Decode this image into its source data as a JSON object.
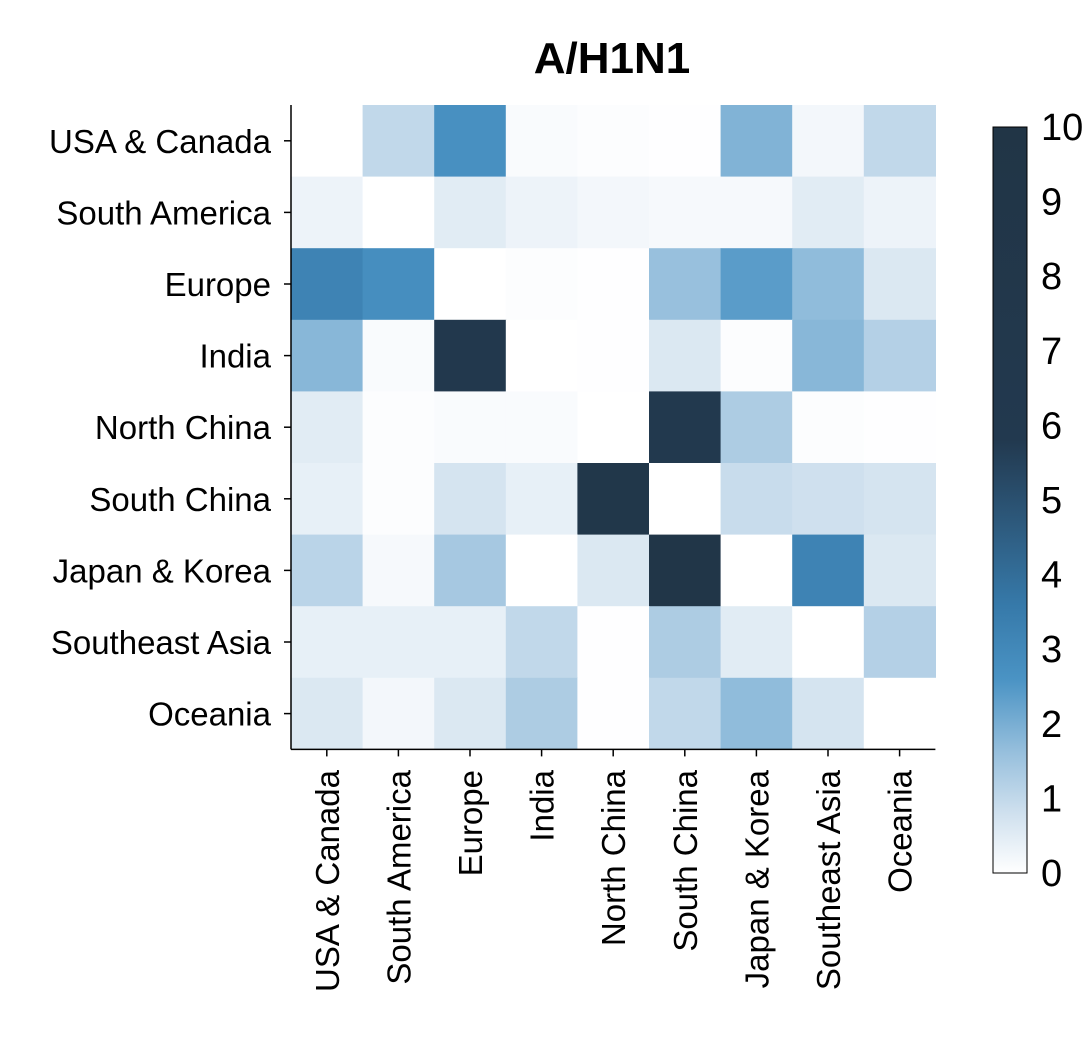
{
  "chart_data": {
    "type": "heatmap",
    "title": "A/H1N1",
    "rows": [
      "USA & Canada",
      "South America",
      "Europe",
      "India",
      "North China",
      "South China",
      "Japan & Korea",
      "Southeast Asia",
      "Oceania"
    ],
    "columns": [
      "USA & Canada",
      "South America",
      "Europe",
      "India",
      "North China",
      "South China",
      "Japan & Korea",
      "Southeast Asia",
      "Oceania"
    ],
    "values": [
      [
        0.0,
        1.0,
        2.7,
        0.1,
        0.05,
        0.02,
        1.9,
        0.2,
        1.0
      ],
      [
        0.3,
        0.0,
        0.5,
        0.3,
        0.2,
        0.15,
        0.15,
        0.5,
        0.3
      ],
      [
        3.2,
        2.8,
        0.0,
        0.05,
        0.02,
        1.6,
        2.4,
        1.7,
        0.6
      ],
      [
        1.8,
        0.1,
        6.6,
        0.0,
        0.02,
        0.6,
        0.05,
        1.8,
        1.2
      ],
      [
        0.5,
        0.05,
        0.1,
        0.1,
        0.0,
        6.3,
        1.3,
        0.05,
        0.02
      ],
      [
        0.4,
        0.05,
        0.7,
        0.4,
        8.2,
        0.0,
        0.9,
        0.8,
        0.7
      ],
      [
        1.1,
        0.15,
        1.4,
        0.0,
        0.6,
        9.0,
        0.0,
        3.2,
        0.6
      ],
      [
        0.4,
        0.4,
        0.4,
        1.0,
        0.02,
        1.3,
        0.5,
        0.0,
        1.2
      ],
      [
        0.6,
        0.2,
        0.6,
        1.3,
        0.02,
        1.0,
        1.7,
        0.7,
        0.0
      ]
    ],
    "colorbar": {
      "range": [
        0,
        10
      ],
      "ticks": [
        "0",
        "1",
        "2",
        "3",
        "4",
        "5",
        "6",
        "7",
        "8",
        "9",
        "10"
      ],
      "colors": [
        "#ffffff",
        "#cfe0ee",
        "#98c0dd",
        "#4a93c4",
        "#3679a9",
        "#2e5c80",
        "#22394f",
        "#213546"
      ]
    },
    "colormap_stops_values": [
      0,
      0.8,
      1.6,
      2.6,
      3.6,
      4.6,
      5.8,
      10
    ]
  }
}
